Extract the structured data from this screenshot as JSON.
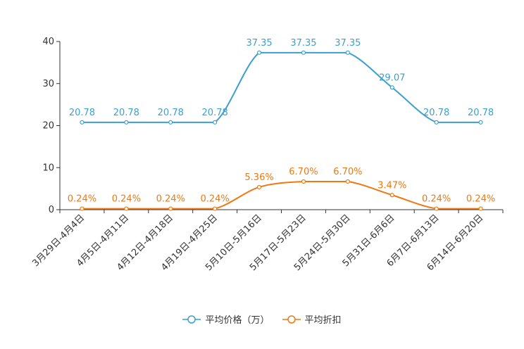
{
  "chart_data": {
    "type": "line",
    "title": "",
    "xlabel": "",
    "ylabel": "",
    "ylim": [
      0,
      40
    ],
    "yticks": [
      0,
      10,
      20,
      30,
      40
    ],
    "categories": [
      "3月29日-4月4日",
      "4月5日-4月11日",
      "4月12日-4月18日",
      "4月19日-4月25日",
      "5月10日-5月16日",
      "5月17日-5月23日",
      "5月24日-5月30日",
      "5月31日-6月6日",
      "6月7日-6月13日",
      "6月14日-6月20日"
    ],
    "series": [
      {
        "name": "平均价格（万）",
        "color": "#3d9fce",
        "values": [
          20.78,
          20.78,
          20.78,
          20.78,
          37.35,
          37.35,
          37.35,
          29.07,
          20.78,
          20.78
        ],
        "labels": [
          "20.78",
          "20.78",
          "20.78",
          "20.78",
          "37.35",
          "37.35",
          "37.35",
          "29.07",
          "20.78",
          "20.78"
        ]
      },
      {
        "name": "平均折扣",
        "color": "#f07810",
        "values": [
          0.24,
          0.24,
          0.24,
          0.24,
          5.36,
          6.7,
          6.7,
          3.47,
          0.24,
          0.24
        ],
        "labels": [
          "0.24%",
          "0.24%",
          "0.24%",
          "0.24%",
          "5.36%",
          "6.70%",
          "6.70%",
          "3.47%",
          "0.24%",
          "0.24%"
        ]
      }
    ],
    "legend_position": "bottom-center",
    "grid": false
  },
  "legend": {
    "items": [
      {
        "label": "平均价格（万）",
        "color": "#3d9fce"
      },
      {
        "label": "平均折扣",
        "color": "#f07810"
      }
    ]
  }
}
